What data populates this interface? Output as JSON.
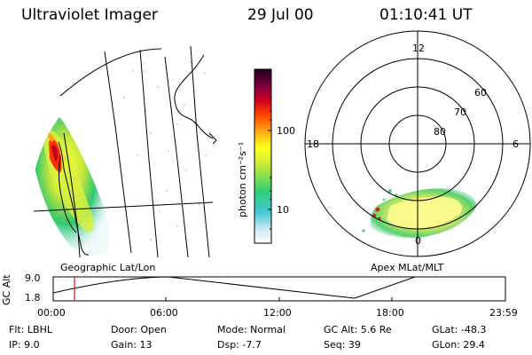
{
  "header": {
    "instrument": "Ultraviolet Imager",
    "date": "29 Jul 00",
    "time": "01:10:41 UT"
  },
  "geo_panel": {
    "caption": "Geographic Lat/Lon"
  },
  "colorbar": {
    "unit_label": "photon cm⁻²s⁻¹",
    "ticks": [
      "100",
      "10"
    ]
  },
  "polar_panel": {
    "caption": "Apex MLat/MLT",
    "lat_labels": [
      "60",
      "70",
      "80"
    ],
    "mlt_labels": {
      "top": "12",
      "left": "18",
      "right": "6",
      "bottom": "0"
    }
  },
  "altitude_plot": {
    "ylabel": "GC Alt",
    "yticks": [
      "9.0",
      "1.8"
    ],
    "xticks": [
      "00:00",
      "06:00",
      "12:00",
      "18:00",
      "23:59"
    ]
  },
  "info_rows": [
    {
      "a": "Flt: LBHL",
      "b": "Door: Open",
      "c": "Mode: Normal",
      "d": "GC Alt: 5.6 Re",
      "e": "GLat: -48.3"
    },
    {
      "a": "IP:  9.0",
      "b": "Gain: 13",
      "c": "Dsp:   -7.7",
      "d": "Seq: 39",
      "e": "GLon:  29.4"
    }
  ],
  "colors": {
    "marker": "#e02020",
    "ink": "#000000"
  }
}
